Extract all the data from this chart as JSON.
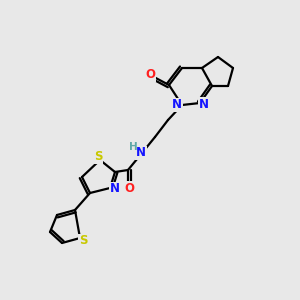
{
  "background_color": "#e8e8e8",
  "atom_colors": {
    "C": "#000000",
    "N": "#1414ff",
    "O": "#ff2020",
    "S": "#c8c800",
    "H": "#5fa8a8"
  },
  "bond_color": "#000000",
  "figsize": [
    3.0,
    3.0
  ],
  "dpi": 100
}
